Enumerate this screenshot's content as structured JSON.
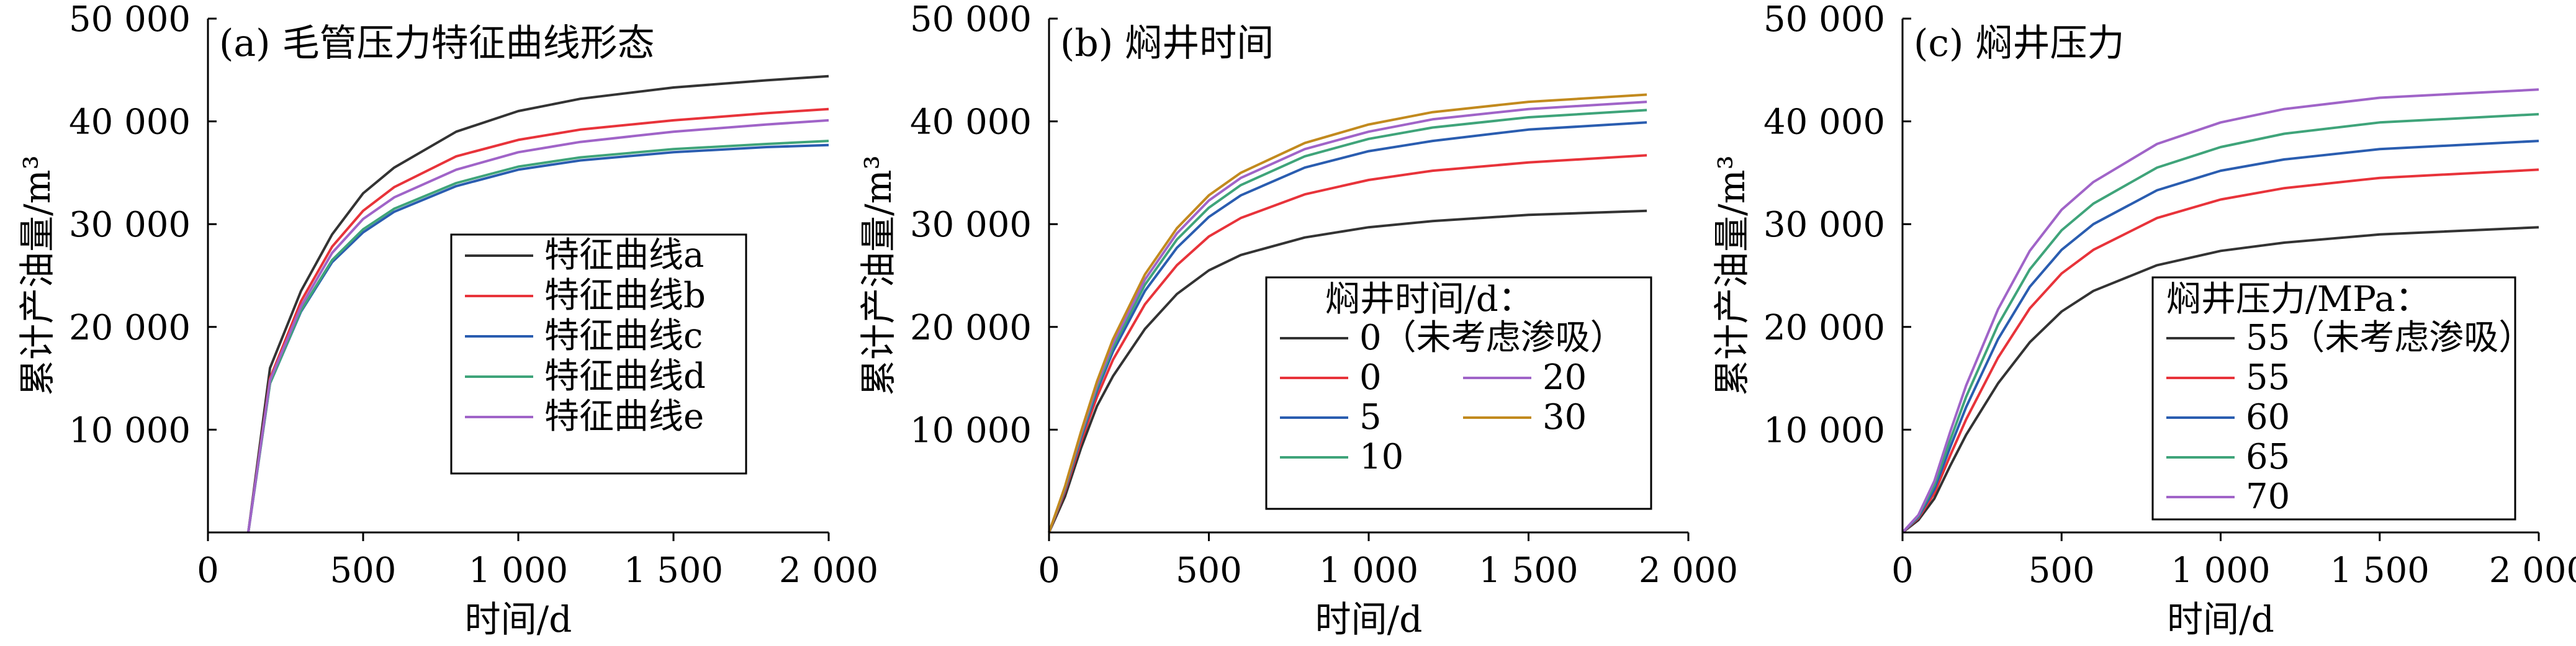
{
  "chart_data": [
    {
      "type": "line",
      "title": "(a) 毛管压力特征曲线形态",
      "xlabel": "时间/d",
      "ylabel": "累计产油量/m³",
      "xlim": [
        0,
        2000
      ],
      "ylim": [
        0,
        50000
      ],
      "xticks": [
        0,
        500,
        1000,
        1500,
        2000
      ],
      "xtick_labels": [
        "0",
        "500",
        "1 000",
        "1 500",
        "2 000"
      ],
      "yticks": [
        10000,
        20000,
        30000,
        40000,
        50000
      ],
      "ytick_labels": [
        "10 000",
        "20 000",
        "30 000",
        "40 000",
        "50 000"
      ],
      "legend": {
        "title": "",
        "placement": "center-right",
        "columns": 1
      },
      "x": [
        130,
        200,
        300,
        400,
        500,
        600,
        800,
        1000,
        1200,
        1500,
        1800,
        2000
      ],
      "series": [
        {
          "name": "特征曲线a",
          "color": "#333333",
          "values": [
            0,
            16000,
            23500,
            29000,
            33000,
            35500,
            39000,
            41000,
            42200,
            43300,
            44000,
            44400
          ]
        },
        {
          "name": "特征曲线b",
          "color": "#e8333a",
          "values": [
            0,
            15000,
            22500,
            27800,
            31300,
            33600,
            36600,
            38200,
            39200,
            40100,
            40800,
            41200
          ]
        },
        {
          "name": "特征曲线c",
          "color": "#2a5db0",
          "values": [
            0,
            14500,
            21500,
            26300,
            29200,
            31200,
            33700,
            35300,
            36200,
            37000,
            37500,
            37700
          ]
        },
        {
          "name": "特征曲线d",
          "color": "#3fa47a",
          "values": [
            0,
            14500,
            21600,
            26500,
            29500,
            31500,
            34000,
            35600,
            36500,
            37300,
            37800,
            38100
          ]
        },
        {
          "name": "特征曲线e",
          "color": "#a064c8",
          "values": [
            0,
            14800,
            22000,
            27200,
            30500,
            32600,
            35300,
            37000,
            38000,
            39000,
            39700,
            40100
          ]
        }
      ]
    },
    {
      "type": "line",
      "title": "(b) 焖井时间",
      "xlabel": "时间/d",
      "ylabel": "累计产油量/m³",
      "xlim": [
        0,
        2000
      ],
      "ylim": [
        0,
        50000
      ],
      "xticks": [
        0,
        500,
        1000,
        1500,
        2000
      ],
      "xtick_labels": [
        "0",
        "500",
        "1 000",
        "1 500",
        "2 000"
      ],
      "yticks": [
        10000,
        20000,
        30000,
        40000,
        50000
      ],
      "ytick_labels": [
        "10 000",
        "20 000",
        "30 000",
        "40 000",
        "50 000"
      ],
      "legend": {
        "title": "焖井时间/d：",
        "placement": "lower-right",
        "columns": 2
      },
      "x": [
        0,
        50,
        100,
        150,
        200,
        300,
        400,
        500,
        600,
        800,
        1000,
        1200,
        1500,
        1870
      ],
      "series": [
        {
          "name": "0（未考虑渗吸）",
          "color": "#333333",
          "values": [
            0,
            3500,
            8200,
            12300,
            15200,
            19800,
            23200,
            25500,
            27000,
            28700,
            29700,
            30300,
            30900,
            31300
          ]
        },
        {
          "name": "0",
          "color": "#e8333a",
          "values": [
            0,
            4000,
            8800,
            13200,
            16800,
            22200,
            26000,
            28800,
            30600,
            32900,
            34300,
            35200,
            36000,
            36700
          ]
        },
        {
          "name": "5",
          "color": "#2a5db0",
          "values": [
            0,
            4200,
            9200,
            13800,
            17600,
            23500,
            27700,
            30700,
            32800,
            35500,
            37100,
            38100,
            39200,
            39900
          ]
        },
        {
          "name": "10",
          "color": "#3fa47a",
          "values": [
            0,
            4300,
            9400,
            14100,
            18000,
            24100,
            28500,
            31600,
            33800,
            36600,
            38300,
            39400,
            40400,
            41100
          ]
        },
        {
          "name": "20",
          "color": "#a064c8",
          "values": [
            0,
            4400,
            9600,
            14400,
            18400,
            24600,
            29100,
            32300,
            34500,
            37300,
            39000,
            40200,
            41200,
            41900
          ]
        },
        {
          "name": "30",
          "color": "#c28a1e",
          "values": [
            0,
            4500,
            9800,
            14700,
            18800,
            25100,
            29600,
            32800,
            35000,
            37900,
            39700,
            40900,
            41900,
            42600
          ]
        }
      ]
    },
    {
      "type": "line",
      "title": "(c) 焖井压力",
      "xlabel": "时间/d",
      "ylabel": "累计产油量/m³",
      "xlim": [
        0,
        2000
      ],
      "ylim": [
        0,
        50000
      ],
      "xticks": [
        0,
        500,
        1000,
        1500,
        2000
      ],
      "xtick_labels": [
        "0",
        "500",
        "1 000",
        "1 500",
        "2 000"
      ],
      "yticks": [
        10000,
        20000,
        30000,
        40000,
        50000
      ],
      "ytick_labels": [
        "10 000",
        "20 000",
        "30 000",
        "40 000",
        "50 000"
      ],
      "legend": {
        "title": "焖井压力/MPa：",
        "placement": "lower-right",
        "columns": 1
      },
      "x": [
        0,
        50,
        100,
        150,
        200,
        300,
        400,
        500,
        600,
        800,
        1000,
        1200,
        1500,
        2000
      ],
      "series": [
        {
          "name": "55（未考虑渗吸）",
          "color": "#333333",
          "values": [
            0,
            1200,
            3300,
            6500,
            9500,
            14500,
            18500,
            21500,
            23500,
            26000,
            27400,
            28200,
            29000,
            29700
          ]
        },
        {
          "name": "55",
          "color": "#e8333a",
          "values": [
            0,
            1400,
            3800,
            7500,
            11000,
            17000,
            21800,
            25200,
            27500,
            30600,
            32400,
            33500,
            34500,
            35300
          ]
        },
        {
          "name": "60",
          "color": "#2a5db0",
          "values": [
            0,
            1500,
            4200,
            8300,
            12200,
            18800,
            23900,
            27500,
            30000,
            33300,
            35200,
            36300,
            37300,
            38100
          ]
        },
        {
          "name": "65",
          "color": "#3fa47a",
          "values": [
            0,
            1600,
            4600,
            9000,
            13200,
            20200,
            25600,
            29400,
            32000,
            35500,
            37500,
            38800,
            39900,
            40700
          ]
        },
        {
          "name": "70",
          "color": "#a064c8",
          "values": [
            0,
            1700,
            5000,
            9800,
            14300,
            21700,
            27400,
            31400,
            34100,
            37800,
            39900,
            41200,
            42300,
            43100
          ]
        }
      ]
    }
  ]
}
